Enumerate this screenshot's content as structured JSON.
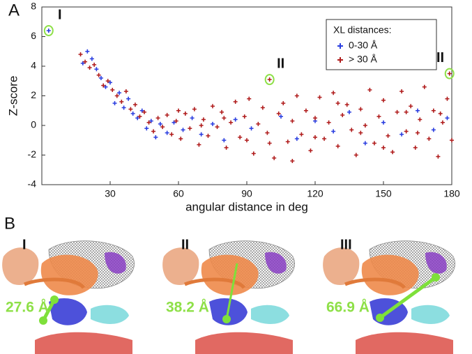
{
  "panel_labels": [
    "A",
    "B"
  ],
  "chart_data": {
    "type": "scatter",
    "x_label": "angular distance in deg",
    "y_label": "Z-score",
    "xlim": [
      0,
      180
    ],
    "xticks": [
      30,
      60,
      90,
      120,
      150,
      180
    ],
    "ylim": [
      -4,
      8
    ],
    "yticks": [
      -4,
      -2,
      0,
      2,
      4,
      6,
      8
    ],
    "legend_title": "XL distances:",
    "legend_position": "upper right",
    "series": [
      {
        "name": "0-30 Å",
        "color": "#2a3ee0",
        "x": [
          3,
          18,
          20,
          22,
          24,
          26,
          28,
          30,
          32,
          34,
          36,
          38,
          40,
          42,
          44,
          46,
          48,
          50,
          52,
          55,
          58,
          62,
          66,
          70,
          75,
          80,
          85,
          92,
          105,
          112,
          120,
          128,
          135,
          142,
          150,
          158,
          165,
          172,
          178
        ],
        "y": [
          6.4,
          4.2,
          5.0,
          4.5,
          3.8,
          3.2,
          2.6,
          2.9,
          1.5,
          2.2,
          1.2,
          1.8,
          0.8,
          0.5,
          1.0,
          -0.2,
          0.3,
          -0.8,
          0.1,
          -0.5,
          0.2,
          -0.3,
          0.5,
          -0.6,
          0.1,
          -1.0,
          0.4,
          -0.2,
          0.6,
          -0.9,
          0.3,
          -0.4,
          0.9,
          -1.2,
          0.2,
          -0.6,
          1.0,
          -0.3,
          0.5
        ]
      },
      {
        "name": "> 30 Å",
        "color": "#b01c1c",
        "x": [
          17,
          19,
          21,
          23,
          25,
          27,
          29,
          31,
          33,
          35,
          37,
          39,
          41,
          43,
          45,
          47,
          49,
          51,
          53,
          55,
          57,
          59,
          61,
          63,
          65,
          67,
          69,
          71,
          73,
          75,
          77,
          79,
          81,
          83,
          85,
          87,
          89,
          91,
          93,
          95,
          97,
          99,
          100,
          102,
          104,
          106,
          108,
          110,
          112,
          114,
          116,
          118,
          120,
          122,
          124,
          126,
          128,
          130,
          132,
          134,
          136,
          138,
          140,
          142,
          144,
          146,
          148,
          150,
          152,
          154,
          156,
          158,
          160,
          162,
          164,
          166,
          168,
          170,
          172,
          174,
          176,
          178,
          179,
          180,
          60,
          70,
          80,
          90,
          110,
          130,
          150,
          165,
          175,
          100,
          120,
          140,
          160
        ],
        "y": [
          4.8,
          4.3,
          3.9,
          4.1,
          3.4,
          2.7,
          3.0,
          2.4,
          2.0,
          1.6,
          2.3,
          1.1,
          1.4,
          0.6,
          0.9,
          0.2,
          -0.4,
          0.5,
          -0.1,
          0.7,
          -0.6,
          0.3,
          -0.9,
          0.8,
          -0.2,
          1.1,
          -1.3,
          0.4,
          -0.7,
          1.3,
          -0.1,
          0.9,
          -1.5,
          0.2,
          1.6,
          -0.8,
          0.6,
          1.8,
          -1.9,
          0.1,
          1.2,
          -0.5,
          3.1,
          -2.2,
          0.8,
          1.5,
          -1.1,
          0.3,
          2.0,
          -0.6,
          1.0,
          -1.7,
          0.5,
          1.9,
          -0.9,
          0.2,
          2.2,
          -1.4,
          0.7,
          1.4,
          -0.3,
          -2.0,
          1.1,
          0.0,
          2.4,
          -1.2,
          0.6,
          1.7,
          -0.7,
          -1.8,
          0.9,
          2.3,
          -0.4,
          1.3,
          -1.5,
          0.4,
          2.6,
          -0.9,
          1.0,
          -2.1,
          0.2,
          1.8,
          3.5,
          -1.0,
          1.0,
          0.0,
          0.5,
          -1.0,
          -2.4,
          1.5,
          -1.5,
          -0.5,
          0.8,
          -1.2,
          -0.8,
          -0.5,
          0.9
        ]
      }
    ],
    "annotations": [
      {
        "text": "I",
        "x": 3,
        "y": 6.4
      },
      {
        "text": "II",
        "x": 100,
        "y": 3.1
      },
      {
        "text": "III",
        "x": 179,
        "y": 3.5
      }
    ]
  },
  "structures": [
    {
      "label": "I",
      "distance": "27.6 Å"
    },
    {
      "label": "II",
      "distance": "38.2 Å"
    },
    {
      "label": "III",
      "distance": "66.9 Å"
    }
  ]
}
